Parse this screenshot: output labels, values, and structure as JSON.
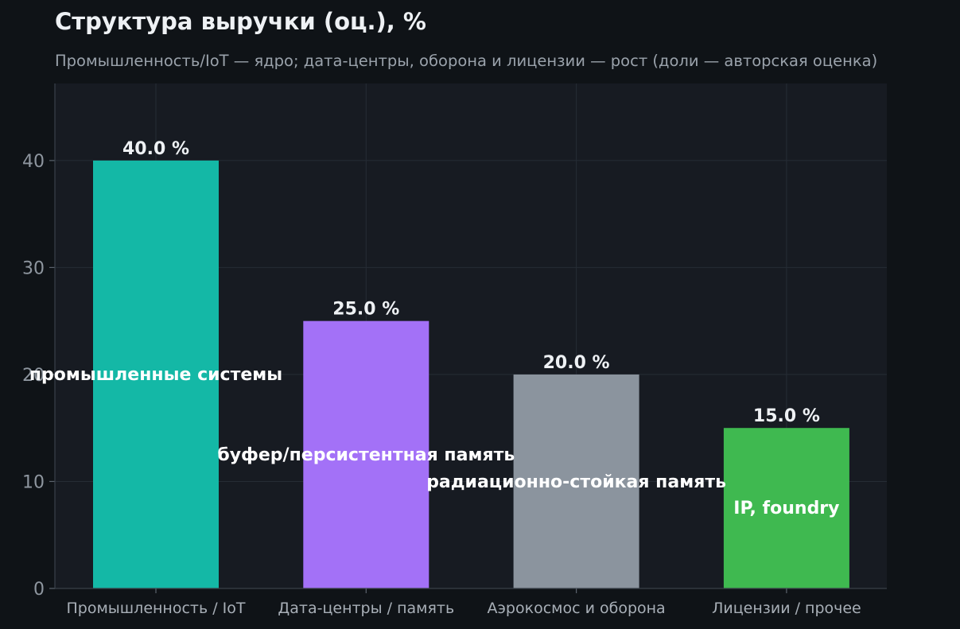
{
  "chart_data": {
    "type": "bar",
    "title": "Структура выручки (оц.), %",
    "subtitle": "Промышленность/IoT — ядро; дата-центры, оборона и лицензии — рост (доли — авторская оценка)",
    "categories": [
      "Промышленность / IoT",
      "Дата-центры / память",
      "Аэрокосмос и оборона",
      "Лицензии / прочее"
    ],
    "values": [
      40.0,
      25.0,
      20.0,
      15.0
    ],
    "value_labels": [
      "40.0 %",
      "25.0 %",
      "20.0 %",
      "15.0 %"
    ],
    "inner_labels": [
      "промышленные системы",
      "буфер/персистентная память",
      "радиационно-стойкая память",
      "IP, foundry"
    ],
    "colors": [
      "#14b8a6",
      "#a371f7",
      "#8b949e",
      "#3fb950"
    ],
    "yticks": [
      0,
      10,
      20,
      30,
      40
    ],
    "ylim": [
      0,
      47.2
    ],
    "grid": true,
    "xlabel": "",
    "ylabel": ""
  }
}
